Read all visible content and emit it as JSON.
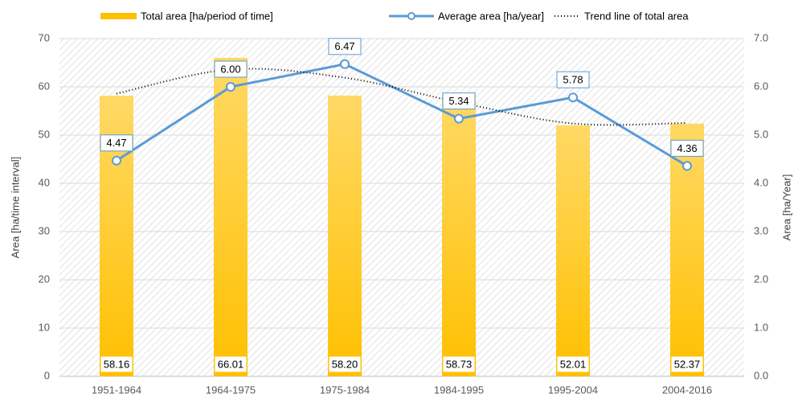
{
  "chart_data": {
    "type": "combo",
    "y_label": "Area [ha/time interval]",
    "y2_label": "Area  [ha/Year]",
    "categories": [
      "1951-1964",
      "1964-1975",
      "1975-1984",
      "1984-1995",
      "1995-2004",
      "2004-2016"
    ],
    "series": [
      {
        "name": "Total area [ha/period of time]",
        "type": "bar",
        "color": "#ffc000",
        "values": [
          58.16,
          66.01,
          58.2,
          58.73,
          52.01,
          52.37
        ],
        "value_labels": [
          "58.16",
          "66.01",
          "58.20",
          "58.73",
          "52.01",
          "52.37"
        ]
      },
      {
        "name": "Average area [ha/year]",
        "type": "line",
        "axis": "y2",
        "color": "#5b9bd5",
        "values": [
          4.47,
          6.0,
          6.47,
          5.34,
          5.78,
          4.36
        ],
        "value_labels": [
          "4.47",
          "6.00",
          "6.47",
          "5.34",
          "5.78",
          "4.36"
        ]
      },
      {
        "name": "Trend line of total area",
        "type": "trend",
        "color": "#000000",
        "values": [
          58.6,
          63.6,
          61.9,
          56.8,
          52.4,
          52.5
        ]
      }
    ],
    "ylim": [
      0,
      70
    ],
    "yticks": [
      0,
      10,
      20,
      30,
      40,
      50,
      60,
      70
    ],
    "y2lim": [
      0,
      7
    ],
    "y2ticks": [
      {
        "value": 0,
        "label": "0.0"
      },
      {
        "value": 1,
        "label": "1.0"
      },
      {
        "value": 2,
        "label": "2.0"
      },
      {
        "value": 3,
        "label": "3.0"
      },
      {
        "value": 4,
        "label": "4.0"
      },
      {
        "value": 5,
        "label": "5.0"
      },
      {
        "value": 6,
        "label": "6.0"
      },
      {
        "value": 7,
        "label": "7.0"
      }
    ],
    "grid": true
  }
}
